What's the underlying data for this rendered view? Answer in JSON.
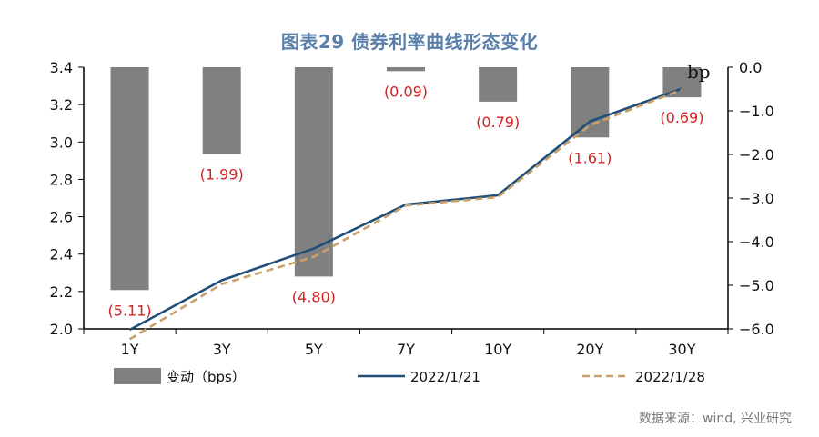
{
  "title": "图表29  债券利率曲线形态变化",
  "source": "数据来源：wind, 兴业研究",
  "chart_data": {
    "type": "bar+line",
    "categories": [
      "1Y",
      "3Y",
      "5Y",
      "7Y",
      "10Y",
      "20Y",
      "30Y"
    ],
    "bar_series": {
      "name": "变动（bps）",
      "values": [
        -5.11,
        -1.99,
        -4.8,
        -0.09,
        -0.79,
        -1.61,
        -0.69
      ],
      "labels": [
        "(5.11)",
        "(1.99)",
        "(4.80)",
        "(0.09)",
        "(0.79)",
        "(1.61)",
        "(0.69)"
      ],
      "axis": "right",
      "color": "#808080",
      "label_color": "#d42020"
    },
    "line_series": [
      {
        "name": "2022/1/21",
        "values": [
          1.995,
          2.26,
          2.43,
          2.665,
          2.715,
          3.11,
          3.285
        ],
        "axis": "left",
        "color": "#1f4e79",
        "style": "solid"
      },
      {
        "name": "2022/1/28",
        "values": [
          1.945,
          2.24,
          2.385,
          2.66,
          2.705,
          3.09,
          3.28
        ],
        "axis": "left",
        "color": "#c9a06a",
        "style": "dashed"
      }
    ],
    "left_axis": {
      "min": 2.0,
      "max": 3.4,
      "step": 0.2,
      "ticks": [
        "2.0",
        "2.2",
        "2.4",
        "2.6",
        "2.8",
        "3.0",
        "3.2",
        "3.4"
      ]
    },
    "right_axis": {
      "min": -6.0,
      "max": 0.0,
      "step": 1.0,
      "ticks": [
        "-6.0",
        "-5.0",
        "-4.0",
        "-3.0",
        "-2.0",
        "-1.0",
        "0.0"
      ],
      "unit": "bp"
    },
    "grid": false,
    "legend_position": "bottom"
  }
}
